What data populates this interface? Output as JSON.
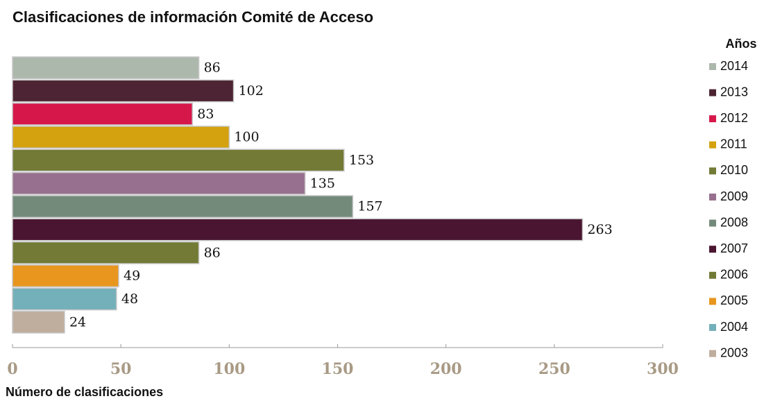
{
  "chart_data": {
    "type": "bar",
    "orientation": "horizontal",
    "title": "Clasificaciones de información Comité de Acceso",
    "x_label": "Número de clasificaciones",
    "legend_title": "Años",
    "categories": [
      "2014",
      "2013",
      "2012",
      "2011",
      "2010",
      "2009",
      "2008",
      "2007",
      "2006",
      "2005",
      "2004",
      "2003"
    ],
    "values": [
      86,
      102,
      83,
      100,
      153,
      135,
      157,
      263,
      86,
      49,
      48,
      24
    ],
    "colors": [
      "#adb8ad",
      "#4d2433",
      "#d6174a",
      "#d4a20f",
      "#737a35",
      "#98708f",
      "#738a7a",
      "#4a1530",
      "#737a35",
      "#e8961e",
      "#74b0ba",
      "#bfae9e"
    ],
    "xlim": [
      0,
      300
    ],
    "xticks": [
      0,
      50,
      100,
      150,
      200,
      250,
      300
    ],
    "legend": "right"
  }
}
